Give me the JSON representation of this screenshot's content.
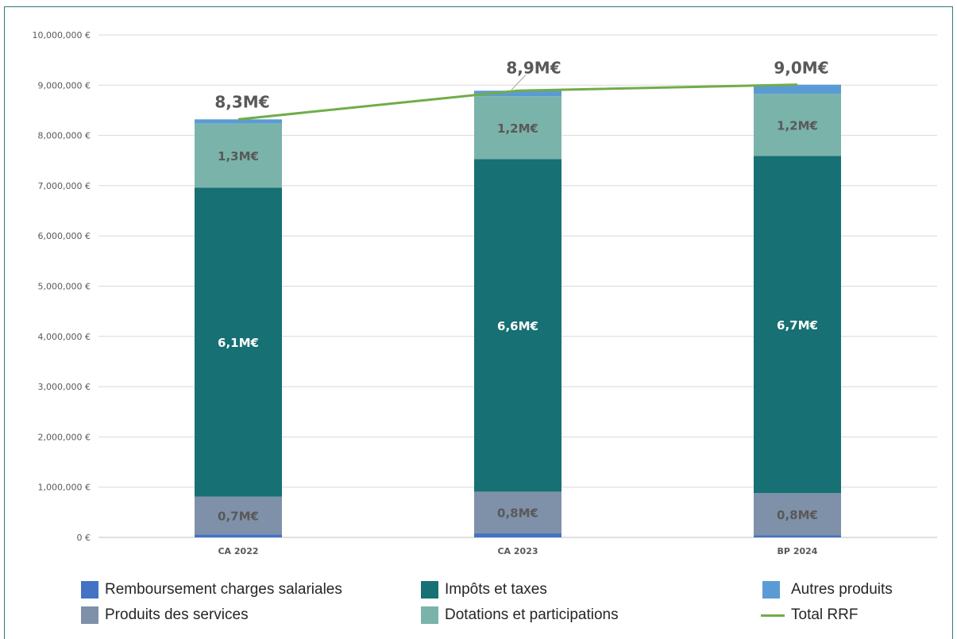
{
  "chart_data": {
    "type": "bar",
    "stacked": true,
    "categories": [
      "CA 2022",
      "CA 2023",
      "BP 2024"
    ],
    "ylim": [
      0,
      10000000
    ],
    "yticks": [
      "0 €",
      "1,000,000 €",
      "2,000,000 €",
      "3,000,000 €",
      "4,000,000 €",
      "5,000,000 €",
      "6,000,000 €",
      "7,000,000 €",
      "8,000,000 €",
      "9,000,000 €",
      "10,000,000 €"
    ],
    "grid": true,
    "legend_position": "bottom",
    "series": [
      {
        "name": "Remboursement charges salariales",
        "color": "#4472c4",
        "values": [
          60000,
          80000,
          40000
        ],
        "labels": [
          "",
          "",
          ""
        ]
      },
      {
        "name": "Produits des services",
        "color": "#7f91a9",
        "values": [
          750000,
          830000,
          840000
        ],
        "labels": [
          "0,7M€",
          "0,8M€",
          "0,8M€"
        ]
      },
      {
        "name": "Impôts et taxes",
        "color": "#177073",
        "values": [
          6150000,
          6620000,
          6710000
        ],
        "labels": [
          "6,1M€",
          "6,6M€",
          "6,7M€"
        ]
      },
      {
        "name": "Dotations et participations",
        "color": "#7ab3aa",
        "values": [
          1280000,
          1250000,
          1240000
        ],
        "labels": [
          "1,3M€",
          "1,2M€",
          "1,2M€"
        ]
      },
      {
        "name": "Autres produits",
        "color": "#5b9bd5",
        "values": [
          80000,
          110000,
          180000
        ],
        "labels": [
          "",
          "",
          ""
        ]
      }
    ],
    "line": {
      "name": "Total RRF",
      "color": "#70ad47",
      "values": [
        8320000,
        8890000,
        9010000
      ],
      "labels": [
        "8,3M€",
        "8,9M€",
        "9,0M€"
      ]
    }
  }
}
